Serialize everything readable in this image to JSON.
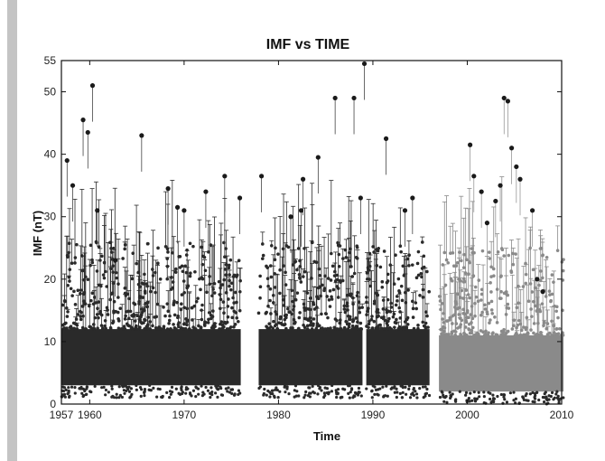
{
  "chart_data": {
    "type": "scatter",
    "title": "IMF vs TIME",
    "xlabel": "Time",
    "ylabel": "IMF (nT)",
    "xlim": [
      1957,
      2010
    ],
    "ylim": [
      0,
      55
    ],
    "x_ticks": [
      "1957",
      "1960",
      "1970",
      "1980",
      "1990",
      "2000",
      "2010"
    ],
    "y_ticks": [
      "0",
      "10",
      "20",
      "30",
      "40",
      "50",
      "55"
    ],
    "grid": false,
    "error_bars": true,
    "series": [
      {
        "color": "#2a2a2a",
        "segments": [
          [
            1957,
            1976
          ],
          [
            1977.9,
            1988.9
          ],
          [
            1989.3,
            1996
          ]
        ],
        "band": [
          3,
          12
        ],
        "outliers": [
          [
            1957.6,
            39
          ],
          [
            1958.2,
            35
          ],
          [
            1959.3,
            45.5
          ],
          [
            1959.8,
            43.5
          ],
          [
            1960.3,
            51
          ],
          [
            1960.8,
            31
          ],
          [
            1962.7,
            23
          ],
          [
            1965.5,
            43
          ],
          [
            1968.3,
            34.5
          ],
          [
            1969.3,
            31.5
          ],
          [
            1970.0,
            31
          ],
          [
            1972.3,
            34
          ],
          [
            1974.3,
            36.5
          ],
          [
            1975.9,
            33
          ],
          [
            1978.2,
            36.5
          ],
          [
            1981.3,
            30
          ],
          [
            1982.4,
            31
          ],
          [
            1982.6,
            36
          ],
          [
            1984.2,
            39.5
          ],
          [
            1986.0,
            49
          ],
          [
            1988.0,
            49
          ],
          [
            1988.7,
            33
          ],
          [
            1989.1,
            54.5
          ],
          [
            1991.4,
            42.5
          ],
          [
            1993.4,
            31
          ],
          [
            1994.2,
            33
          ]
        ]
      },
      {
        "color": "#8a8a8a",
        "segments": [
          [
            1997,
            2010.2
          ]
        ],
        "band": [
          2,
          11
        ],
        "outliers": [
          [
            2000.3,
            41.5
          ],
          [
            2000.7,
            36.5
          ],
          [
            2001.5,
            34
          ],
          [
            2002.1,
            29
          ],
          [
            2003.0,
            32.5
          ],
          [
            2003.5,
            35
          ],
          [
            2003.9,
            49
          ],
          [
            2004.3,
            48.5
          ],
          [
            2004.7,
            41
          ],
          [
            2005.2,
            38
          ],
          [
            2005.6,
            36
          ],
          [
            2006.9,
            31
          ],
          [
            2007.4,
            20
          ],
          [
            2008.0,
            18
          ]
        ]
      }
    ]
  }
}
